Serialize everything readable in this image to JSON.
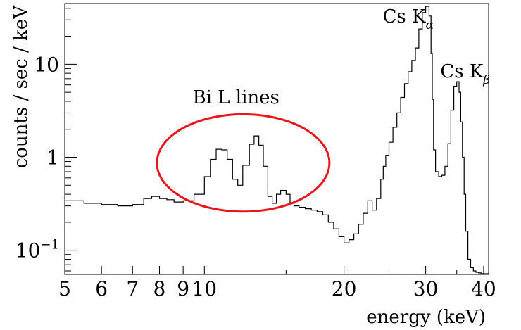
{
  "chart_data": {
    "type": "line",
    "xlabel": "energy (keV)",
    "ylabel": "counts / sec / keV",
    "xscale": "log",
    "yscale": "log",
    "xlim": [
      5,
      41
    ],
    "ylim": [
      0.055,
      45
    ],
    "xticks": [
      {
        "value": 5,
        "label": "5"
      },
      {
        "value": 6,
        "label": "6"
      },
      {
        "value": 7,
        "label": "7"
      },
      {
        "value": 8,
        "label": "8"
      },
      {
        "value": 9,
        "label": "9"
      },
      {
        "value": 10,
        "label": "10"
      },
      {
        "value": 20,
        "label": "20"
      },
      {
        "value": 30,
        "label": "30"
      },
      {
        "value": 40,
        "label": "40"
      }
    ],
    "yticks": [
      {
        "value": 0.1,
        "label": "10",
        "sup": "−1"
      },
      {
        "value": 1,
        "label": "1",
        "sup": ""
      },
      {
        "value": 10,
        "label": "10",
        "sup": ""
      }
    ],
    "grid": false,
    "series": [
      {
        "style": "step",
        "color": "#000000",
        "x": [
          5.0,
          5.5,
          6.0,
          6.5,
          7.0,
          7.4,
          7.7,
          8.0,
          8.3,
          8.6,
          9.0,
          9.5,
          10.0,
          10.3,
          10.6,
          10.9,
          11.2,
          11.5,
          11.8,
          12.1,
          12.5,
          12.8,
          13.1,
          13.4,
          13.7,
          14.0,
          14.3,
          14.6,
          15.0,
          15.3,
          15.6,
          16.0,
          16.5,
          17.0,
          17.5,
          18.0,
          18.5,
          19.0,
          19.5,
          20.0,
          20.5,
          21.0,
          21.5,
          22.0,
          22.5,
          23.0,
          23.5,
          24.0,
          24.3,
          24.6,
          25.0,
          25.5,
          26.0,
          26.5,
          27.0,
          27.5,
          28.0,
          28.5,
          29.0,
          29.5,
          30.0,
          30.5,
          30.8,
          31.0,
          31.2,
          31.5,
          32.0,
          32.5,
          33.0,
          33.5,
          34.0,
          34.5,
          35.0,
          35.4,
          35.7,
          36.0,
          36.3,
          36.6,
          37.0,
          37.5,
          38.0,
          38.5,
          39.0,
          39.5,
          40.0,
          40.5,
          41.0
        ],
        "y": [
          0.34,
          0.32,
          0.31,
          0.3,
          0.31,
          0.36,
          0.38,
          0.36,
          0.35,
          0.33,
          0.34,
          0.4,
          0.62,
          0.95,
          1.22,
          1.2,
          0.95,
          0.58,
          0.5,
          0.82,
          1.38,
          1.7,
          1.35,
          0.8,
          0.38,
          0.32,
          0.4,
          0.44,
          0.4,
          0.32,
          0.3,
          0.29,
          0.28,
          0.27,
          0.26,
          0.24,
          0.2,
          0.17,
          0.14,
          0.12,
          0.13,
          0.15,
          0.19,
          0.25,
          0.34,
          0.27,
          0.36,
          0.58,
          0.8,
          1.05,
          1.45,
          2.1,
          3.0,
          4.4,
          6.2,
          8.3,
          11.0,
          15.0,
          24.0,
          36.0,
          42.0,
          33.0,
          13.0,
          4.2,
          1.2,
          0.7,
          0.62,
          0.64,
          0.8,
          1.4,
          3.2,
          5.8,
          6.5,
          5.0,
          2.4,
          1.0,
          0.4,
          0.16,
          0.08,
          0.065,
          0.06,
          0.058,
          0.057,
          0.056,
          0.056,
          0.056,
          0.056
        ]
      }
    ],
    "annotations": [
      {
        "text": "Bi L lines",
        "x": 11.7,
        "y": 3.8
      },
      {
        "text": "Cs K",
        "sub": "α",
        "x": 27.5,
        "y": 28
      },
      {
        "text": "Cs K",
        "sub": "β",
        "x": 36.5,
        "y": 7.2
      }
    ],
    "highlight_ellipse": {
      "color": "#e8161a",
      "cx": 12.5,
      "cy": 0.75,
      "x_span": [
        7.9,
        18.6
      ],
      "y_span": [
        0.26,
        2.9
      ]
    }
  }
}
